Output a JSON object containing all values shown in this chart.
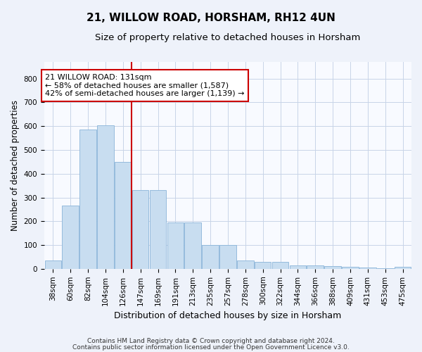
{
  "title1": "21, WILLOW ROAD, HORSHAM, RH12 4UN",
  "title2": "Size of property relative to detached houses in Horsham",
  "xlabel": "Distribution of detached houses by size in Horsham",
  "ylabel": "Number of detached properties",
  "categories": [
    "38sqm",
    "60sqm",
    "82sqm",
    "104sqm",
    "126sqm",
    "147sqm",
    "169sqm",
    "191sqm",
    "213sqm",
    "235sqm",
    "257sqm",
    "278sqm",
    "300sqm",
    "322sqm",
    "344sqm",
    "366sqm",
    "388sqm",
    "409sqm",
    "431sqm",
    "453sqm",
    "475sqm"
  ],
  "values": [
    35,
    265,
    585,
    605,
    450,
    330,
    330,
    195,
    195,
    100,
    100,
    35,
    30,
    30,
    15,
    15,
    12,
    8,
    5,
    2,
    7
  ],
  "bar_color": "#c8ddf0",
  "bar_edge_color": "#8ab4d8",
  "vline_color": "#cc0000",
  "vline_x_idx": 4,
  "annotation_text": "21 WILLOW ROAD: 131sqm\n← 58% of detached houses are smaller (1,587)\n42% of semi-detached houses are larger (1,139) →",
  "annotation_box_facecolor": "#ffffff",
  "annotation_box_edgecolor": "#cc0000",
  "ylim": [
    0,
    870
  ],
  "yticks": [
    0,
    100,
    200,
    300,
    400,
    500,
    600,
    700,
    800
  ],
  "footer1": "Contains HM Land Registry data © Crown copyright and database right 2024.",
  "footer2": "Contains public sector information licensed under the Open Government Licence v3.0.",
  "background_color": "#eef2fa",
  "plot_bg_color": "#f8faff",
  "grid_color": "#c8d4e8",
  "title1_fontsize": 11,
  "title2_fontsize": 9.5,
  "tick_fontsize": 7.5,
  "ylabel_fontsize": 8.5,
  "xlabel_fontsize": 9,
  "annotation_fontsize": 8,
  "footer_fontsize": 6.5
}
